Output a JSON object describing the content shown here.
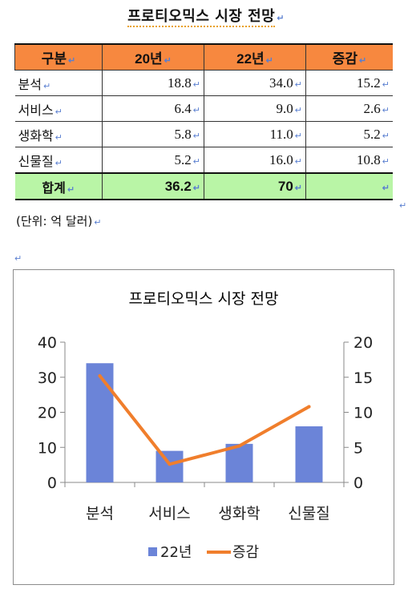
{
  "doc": {
    "title": "프로티오믹스 시장 전망",
    "unit_note": "(단위: 억 달러)",
    "para_mark": "↵"
  },
  "table": {
    "headers": [
      "구분",
      "20년",
      "22년",
      "증감"
    ],
    "rows": [
      {
        "label": "분석",
        "y20": "18.8",
        "y22": "34.0",
        "diff": "15.2"
      },
      {
        "label": "서비스",
        "y20": "6.4",
        "y22": "9.0",
        "diff": "2.6"
      },
      {
        "label": "생화학",
        "y20": "5.8",
        "y22": "11.0",
        "diff": "5.2"
      },
      {
        "label": "신물질",
        "y20": "5.2",
        "y22": "16.0",
        "diff": "10.8"
      }
    ],
    "total": {
      "label": "합계",
      "y20": "36.2",
      "y22": "70",
      "diff": ""
    },
    "header_color": "#f7883f",
    "total_color": "#b9f5a6"
  },
  "chart_data": {
    "type": "bar",
    "title": "프로티오믹스 시장 전망",
    "categories": [
      "분석",
      "서비스",
      "생화학",
      "신물질"
    ],
    "series": [
      {
        "name": "22년",
        "type": "bar",
        "axis": "left",
        "values": [
          34.0,
          9.0,
          11.0,
          16.0
        ],
        "color": "#6b84d8"
      },
      {
        "name": "증감",
        "type": "line",
        "axis": "right",
        "values": [
          15.2,
          2.6,
          5.2,
          10.8
        ],
        "color": "#f07e2c"
      }
    ],
    "y_left": {
      "min": 0,
      "max": 40,
      "ticks": [
        "0",
        "10",
        "20",
        "30",
        "40"
      ]
    },
    "y_right": {
      "min": 0,
      "max": 20,
      "ticks": [
        "0",
        "5",
        "10",
        "15",
        "20"
      ]
    },
    "grid": false,
    "legend_position": "bottom"
  }
}
